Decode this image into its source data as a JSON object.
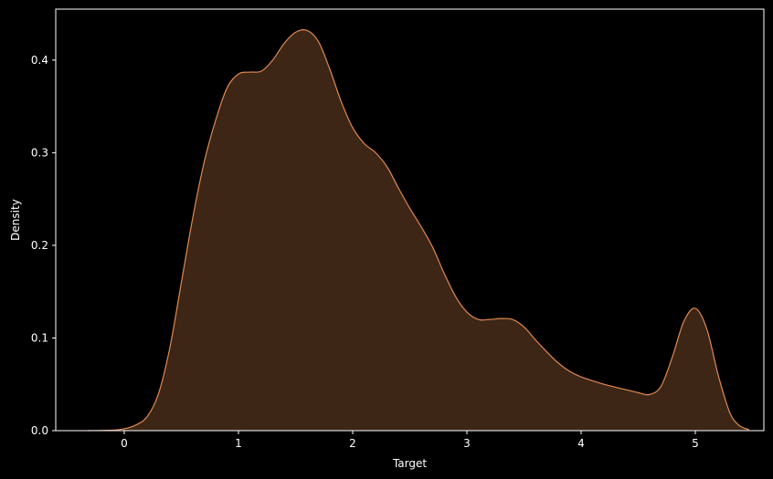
{
  "chart_data": {
    "type": "area",
    "xlabel": "Target",
    "ylabel": "Density",
    "xlim": [
      -0.6,
      5.6
    ],
    "ylim": [
      0,
      0.455
    ],
    "x_ticks": [
      0,
      1,
      2,
      3,
      4,
      5
    ],
    "y_ticks": [
      0.0,
      0.1,
      0.2,
      0.3,
      0.4
    ],
    "x_tick_labels": [
      "0",
      "1",
      "2",
      "3",
      "4",
      "5"
    ],
    "y_tick_labels": [
      "0.0",
      "0.1",
      "0.2",
      "0.3",
      "0.4"
    ],
    "grid": false,
    "colors": {
      "background": "#000000",
      "axes": "#ffffff",
      "line": "#e08850",
      "fill": "#3d2616"
    },
    "series": [
      {
        "x": [
          -0.32,
          -0.1,
          0.0,
          0.1,
          0.2,
          0.3,
          0.4,
          0.5,
          0.6,
          0.7,
          0.8,
          0.9,
          1.0,
          1.1,
          1.2,
          1.3,
          1.4,
          1.5,
          1.6,
          1.7,
          1.8,
          1.9,
          2.0,
          2.1,
          2.2,
          2.3,
          2.4,
          2.5,
          2.6,
          2.7,
          2.8,
          2.9,
          3.0,
          3.1,
          3.2,
          3.3,
          3.4,
          3.5,
          3.6,
          3.7,
          3.8,
          3.9,
          4.0,
          4.2,
          4.4,
          4.5,
          4.6,
          4.7,
          4.8,
          4.9,
          5.0,
          5.1,
          5.2,
          5.3,
          5.38,
          5.47
        ],
        "y": [
          0.0,
          0.0005,
          0.002,
          0.006,
          0.015,
          0.04,
          0.09,
          0.16,
          0.23,
          0.29,
          0.335,
          0.37,
          0.385,
          0.387,
          0.388,
          0.4,
          0.418,
          0.43,
          0.432,
          0.42,
          0.39,
          0.355,
          0.327,
          0.31,
          0.3,
          0.285,
          0.262,
          0.24,
          0.22,
          0.198,
          0.17,
          0.145,
          0.128,
          0.12,
          0.12,
          0.121,
          0.12,
          0.112,
          0.098,
          0.085,
          0.073,
          0.064,
          0.058,
          0.05,
          0.044,
          0.041,
          0.039,
          0.048,
          0.08,
          0.118,
          0.132,
          0.11,
          0.06,
          0.02,
          0.006,
          0.001
        ]
      }
    ]
  }
}
